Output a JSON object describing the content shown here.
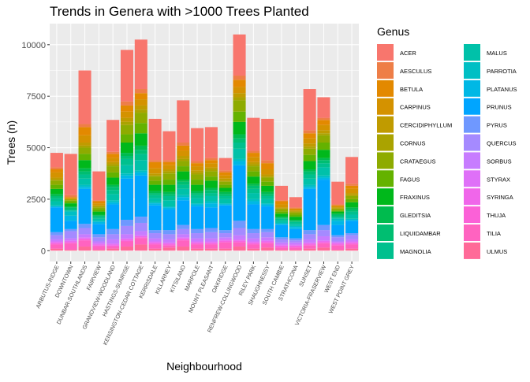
{
  "chart_data": {
    "type": "stacked_bar",
    "title": "Trends in Genera with >1000 Trees Planted",
    "x_label": "Neighbourhood",
    "y_label": "Trees (n)",
    "legend_title": "Genus",
    "categories": [
      "ARBUTUS-RIDGE",
      "DOWNTOWN",
      "DUNBAR-SOUTHLANDS",
      "FAIRVIEW",
      "GRANDVIEW-WOODLAND",
      "HASTINGS-SUNRISE",
      "KENSINGTON-CEDAR COTTAGE",
      "KERRISDALE",
      "KILLARNEY",
      "KITSILANO",
      "MARPOLE",
      "MOUNT PLEASANT",
      "OAKRIDGE",
      "RENFREW-COLLINGWOOD",
      "RILEY PARK",
      "SHAUGHNESSY",
      "SOUTH CAMBIE",
      "STRATHCONA",
      "SUNSET",
      "VICTORIA-FRASERVIEW",
      "WEST END",
      "WEST POINT GREY"
    ],
    "ylim": [
      -525,
      11025
    ],
    "yticks": [
      0,
      2500,
      5000,
      7500,
      10000
    ],
    "grid": true,
    "series": [
      {
        "name": "ACER",
        "color": "#F8766D",
        "values": [
          700,
          2000,
          2600,
          1400,
          1550,
          2500,
          2400,
          2000,
          1400,
          2050,
          1600,
          1500,
          600,
          2000,
          1600,
          2000,
          700,
          500,
          2000,
          1000,
          1100,
          1300
        ]
      },
      {
        "name": "AESCULUS",
        "color": "#EE7E47",
        "values": [
          100,
          100,
          150,
          50,
          100,
          200,
          200,
          100,
          100,
          150,
          100,
          100,
          100,
          200,
          100,
          150,
          50,
          50,
          150,
          100,
          50,
          100
        ]
      },
      {
        "name": "BETULA",
        "color": "#E38900",
        "values": [
          150,
          50,
          400,
          100,
          200,
          300,
          300,
          300,
          150,
          250,
          150,
          150,
          150,
          350,
          200,
          300,
          150,
          50,
          250,
          250,
          50,
          150
        ]
      },
      {
        "name": "CARPINUS",
        "color": "#D49200",
        "values": [
          250,
          50,
          350,
          100,
          200,
          300,
          300,
          250,
          200,
          250,
          200,
          200,
          150,
          300,
          250,
          250,
          150,
          50,
          250,
          250,
          50,
          200
        ]
      },
      {
        "name": "CERCIDIPHYLLUM",
        "color": "#C09B00",
        "values": [
          100,
          0,
          150,
          50,
          100,
          200,
          200,
          100,
          100,
          150,
          100,
          100,
          100,
          200,
          100,
          100,
          50,
          50,
          150,
          150,
          50,
          100
        ]
      },
      {
        "name": "CORNUS",
        "color": "#AAA300",
        "values": [
          50,
          50,
          100,
          50,
          100,
          150,
          150,
          50,
          100,
          100,
          100,
          100,
          50,
          150,
          100,
          50,
          50,
          50,
          100,
          100,
          50,
          50
        ]
      },
      {
        "name": "CRATAEGUS",
        "color": "#8EAB00",
        "values": [
          200,
          50,
          300,
          100,
          300,
          450,
          500,
          200,
          300,
          250,
          250,
          250,
          150,
          550,
          250,
          200,
          100,
          100,
          300,
          350,
          50,
          150
        ]
      },
      {
        "name": "FAGUS",
        "color": "#64B200",
        "values": [
          200,
          100,
          300,
          100,
          250,
          400,
          500,
          200,
          250,
          250,
          250,
          200,
          150,
          500,
          250,
          200,
          100,
          100,
          300,
          350,
          50,
          150
        ]
      },
      {
        "name": "FRAXINUS",
        "color": "#00B81B",
        "values": [
          250,
          150,
          400,
          150,
          350,
          500,
          600,
          300,
          350,
          400,
          300,
          350,
          200,
          600,
          350,
          300,
          150,
          150,
          400,
          400,
          100,
          250
        ]
      },
      {
        "name": "GLEDITSIA",
        "color": "#00BB4E",
        "values": [
          100,
          50,
          150,
          50,
          100,
          150,
          200,
          100,
          100,
          100,
          100,
          100,
          100,
          200,
          100,
          100,
          50,
          50,
          100,
          100,
          50,
          100
        ]
      },
      {
        "name": "LIQUIDAMBAR",
        "color": "#00BE71",
        "values": [
          100,
          100,
          150,
          50,
          150,
          150,
          200,
          100,
          100,
          150,
          100,
          150,
          100,
          200,
          150,
          100,
          50,
          50,
          150,
          150,
          100,
          100
        ]
      },
      {
        "name": "MAGNOLIA",
        "color": "#00C08E",
        "values": [
          150,
          50,
          200,
          100,
          200,
          300,
          300,
          150,
          200,
          200,
          150,
          150,
          150,
          300,
          200,
          150,
          100,
          100,
          200,
          200,
          50,
          150
        ]
      },
      {
        "name": "MALUS",
        "color": "#00C1A9",
        "values": [
          200,
          50,
          300,
          100,
          300,
          400,
          500,
          200,
          300,
          300,
          250,
          250,
          200,
          500,
          300,
          200,
          100,
          100,
          300,
          400,
          50,
          200
        ]
      },
      {
        "name": "PARROTIA",
        "color": "#00BFC4",
        "values": [
          50,
          200,
          100,
          50,
          100,
          100,
          100,
          50,
          50,
          100,
          50,
          100,
          50,
          100,
          100,
          50,
          50,
          50,
          100,
          100,
          100,
          50
        ]
      },
      {
        "name": "PLATANUS",
        "color": "#00B8E5",
        "values": [
          50,
          250,
          100,
          100,
          100,
          150,
          150,
          100,
          100,
          150,
          100,
          200,
          50,
          200,
          150,
          100,
          50,
          100,
          100,
          100,
          200,
          50
        ]
      },
      {
        "name": "PRUNUS",
        "color": "#00A5FF",
        "values": [
          1200,
          400,
          1700,
          500,
          1200,
          2000,
          2000,
          1200,
          1000,
          1200,
          1100,
          1000,
          1200,
          2700,
          1200,
          1100,
          600,
          450,
          2000,
          2200,
          500,
          600
        ]
      },
      {
        "name": "PYRUS",
        "color": "#6F98FF",
        "values": [
          150,
          100,
          200,
          150,
          250,
          300,
          300,
          150,
          200,
          200,
          200,
          200,
          150,
          350,
          200,
          150,
          100,
          100,
          200,
          250,
          100,
          100
        ]
      },
      {
        "name": "QUERCUS",
        "color": "#A58AFF",
        "values": [
          200,
          350,
          300,
          200,
          250,
          400,
          400,
          250,
          250,
          250,
          250,
          300,
          200,
          350,
          250,
          250,
          150,
          100,
          250,
          300,
          200,
          200
        ]
      },
      {
        "name": "SORBUS",
        "color": "#C77CFF",
        "values": [
          100,
          100,
          150,
          100,
          200,
          200,
          200,
          150,
          150,
          150,
          150,
          150,
          100,
          200,
          150,
          150,
          100,
          100,
          150,
          200,
          50,
          100
        ]
      },
      {
        "name": "STYRAX",
        "color": "#DF70F8",
        "values": [
          50,
          50,
          50,
          50,
          50,
          50,
          50,
          50,
          50,
          50,
          50,
          50,
          50,
          50,
          50,
          50,
          50,
          50,
          50,
          50,
          50,
          50
        ]
      },
      {
        "name": "SYRINGA",
        "color": "#F066EA",
        "values": [
          50,
          50,
          50,
          50,
          50,
          50,
          50,
          50,
          50,
          50,
          50,
          50,
          50,
          50,
          50,
          50,
          50,
          50,
          50,
          50,
          50,
          50
        ]
      },
      {
        "name": "THUJA",
        "color": "#FB61D7",
        "values": [
          50,
          50,
          50,
          50,
          50,
          50,
          50,
          50,
          50,
          50,
          50,
          50,
          50,
          50,
          50,
          50,
          50,
          50,
          50,
          50,
          50,
          50
        ]
      },
      {
        "name": "TILIA",
        "color": "#FF63C0",
        "values": [
          200,
          300,
          300,
          150,
          100,
          250,
          300,
          200,
          100,
          300,
          200,
          200,
          300,
          200,
          200,
          200,
          100,
          100,
          150,
          200,
          200,
          200
        ]
      },
      {
        "name": "ULMUS",
        "color": "#FF6A98",
        "values": [
          100,
          50,
          200,
          50,
          100,
          200,
          300,
          100,
          150,
          200,
          100,
          100,
          100,
          200,
          100,
          150,
          50,
          50,
          100,
          150,
          50,
          100
        ]
      }
    ]
  }
}
